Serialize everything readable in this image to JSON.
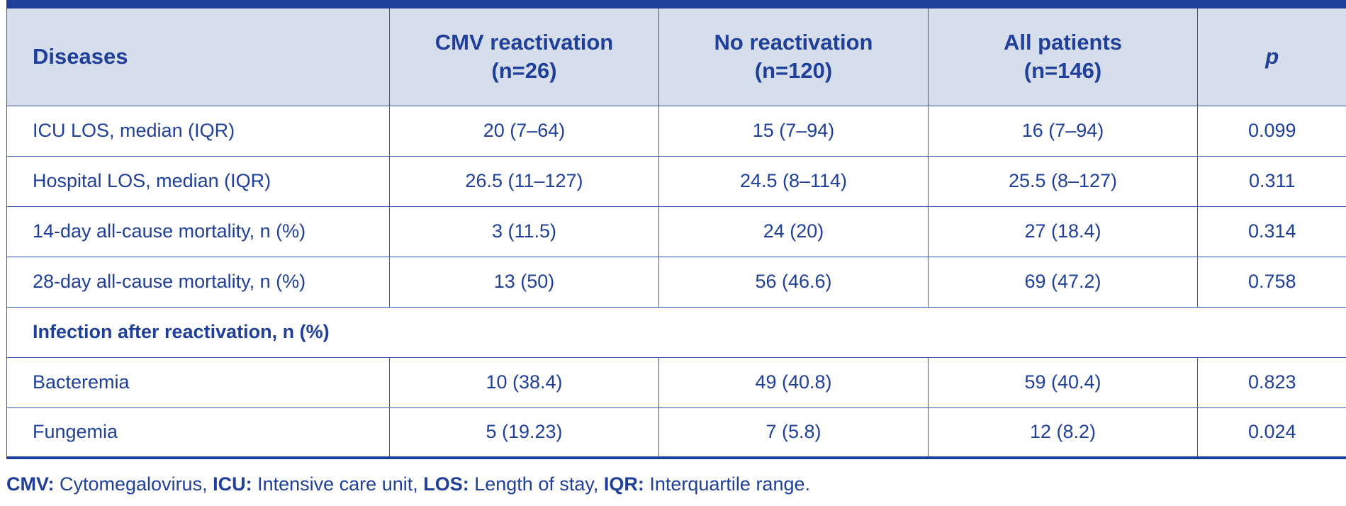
{
  "table": {
    "headers": {
      "diseases": "Diseases",
      "cmv": {
        "line1": "CMV reactivation",
        "line2": "(n=26)"
      },
      "none": {
        "line1": "No reactivation",
        "line2": "(n=120)"
      },
      "all": {
        "line1": "All patients",
        "line2": "(n=146)"
      },
      "p": "p"
    },
    "rows": [
      {
        "label": "ICU LOS, median (IQR)",
        "cmv": "20 (7–64)",
        "none": "15 (7–94)",
        "all": "16 (7–94)",
        "p": "0.099"
      },
      {
        "label": "Hospital LOS, median (IQR)",
        "cmv": "26.5 (11–127)",
        "none": "24.5 (8–114)",
        "all": "25.5 (8–127)",
        "p": "0.311"
      },
      {
        "label": "14-day all-cause mortality, n (%)",
        "cmv": "3 (11.5)",
        "none": "24 (20)",
        "all": "27 (18.4)",
        "p": "0.314"
      },
      {
        "label": "28-day all-cause mortality, n (%)",
        "cmv": "13 (50)",
        "none": "56 (46.6)",
        "all": "69 (47.2)",
        "p": "0.758"
      }
    ],
    "section": "Infection after reactivation, n (%)",
    "section_rows": [
      {
        "label": "Bacteremia",
        "cmv": "10 (38.4)",
        "none": "49 (40.8)",
        "all": "59 (40.4)",
        "p": "0.823"
      },
      {
        "label": "Fungemia",
        "cmv": "5 (19.23)",
        "none": "7 (5.8)",
        "all": "12 (8.2)",
        "p": "0.024"
      }
    ]
  },
  "footnote": {
    "items": [
      {
        "abbr": "CMV:",
        "text": " Cytomegalovirus, "
      },
      {
        "abbr": "ICU:",
        "text": " Intensive care unit, "
      },
      {
        "abbr": "LOS:",
        "text": " Length of stay, "
      },
      {
        "abbr": "IQR:",
        "text": " Interquartile range."
      }
    ]
  },
  "colors": {
    "text": "#1f3f99",
    "header_bg": "#d6deeb",
    "rule": "#1f3f99"
  }
}
